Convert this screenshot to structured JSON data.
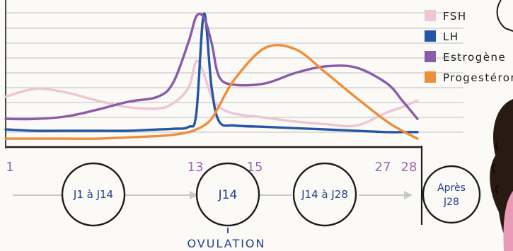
{
  "chart_data": {
    "type": "line",
    "x": [
      1,
      3,
      5,
      7,
      9,
      11,
      12,
      13,
      13.5,
      14,
      14.5,
      15,
      16,
      18,
      20,
      22,
      24,
      26,
      27,
      28
    ],
    "xlim": [
      1,
      28
    ],
    "ylim": [
      0,
      10
    ],
    "tick_labels": [
      "1",
      "13",
      "15",
      "27",
      "28"
    ],
    "tick_values": [
      1,
      13,
      15,
      27,
      28
    ],
    "grid": true,
    "legend_position": "top-right",
    "series": [
      {
        "name": "FSH",
        "color": "#edc6d6",
        "values": [
          3.3,
          3.9,
          3.6,
          3.0,
          2.5,
          2.4,
          2.8,
          4.0,
          6.0,
          5.0,
          3.3,
          2.5,
          2.0,
          1.7,
          1.4,
          1.2,
          1.1,
          2.1,
          2.5,
          3.0
        ]
      },
      {
        "name": "LH",
        "color": "#2456a5",
        "values": [
          0.8,
          0.7,
          0.7,
          0.7,
          0.7,
          0.8,
          0.85,
          1.0,
          2.0,
          9.6,
          4.0,
          1.4,
          1.1,
          1.0,
          0.9,
          0.8,
          0.7,
          0.6,
          0.6,
          0.6
        ]
      },
      {
        "name": "Estrogène",
        "color": "#8b5aa8",
        "values": [
          1.6,
          1.6,
          1.8,
          2.3,
          2.9,
          3.3,
          4.4,
          7.5,
          9.4,
          9.3,
          7.4,
          4.8,
          4.2,
          4.3,
          5.1,
          5.6,
          5.5,
          4.3,
          3.0,
          1.6
        ]
      },
      {
        "name": "Progestérone",
        "color": "#ee8d3a",
        "values": [
          0.1,
          0.1,
          0.1,
          0.1,
          0.2,
          0.3,
          0.4,
          0.6,
          0.8,
          1.1,
          1.6,
          2.6,
          4.6,
          7.0,
          6.9,
          5.1,
          3.2,
          1.4,
          0.7,
          0.1
        ]
      }
    ]
  },
  "timeline": {
    "phase1": "J1 à J14",
    "phase2": "J14",
    "phase3": "J14 à J28",
    "phase4_line1": "Après",
    "phase4_line2": "J28",
    "ovulation": "OVULATION"
  }
}
